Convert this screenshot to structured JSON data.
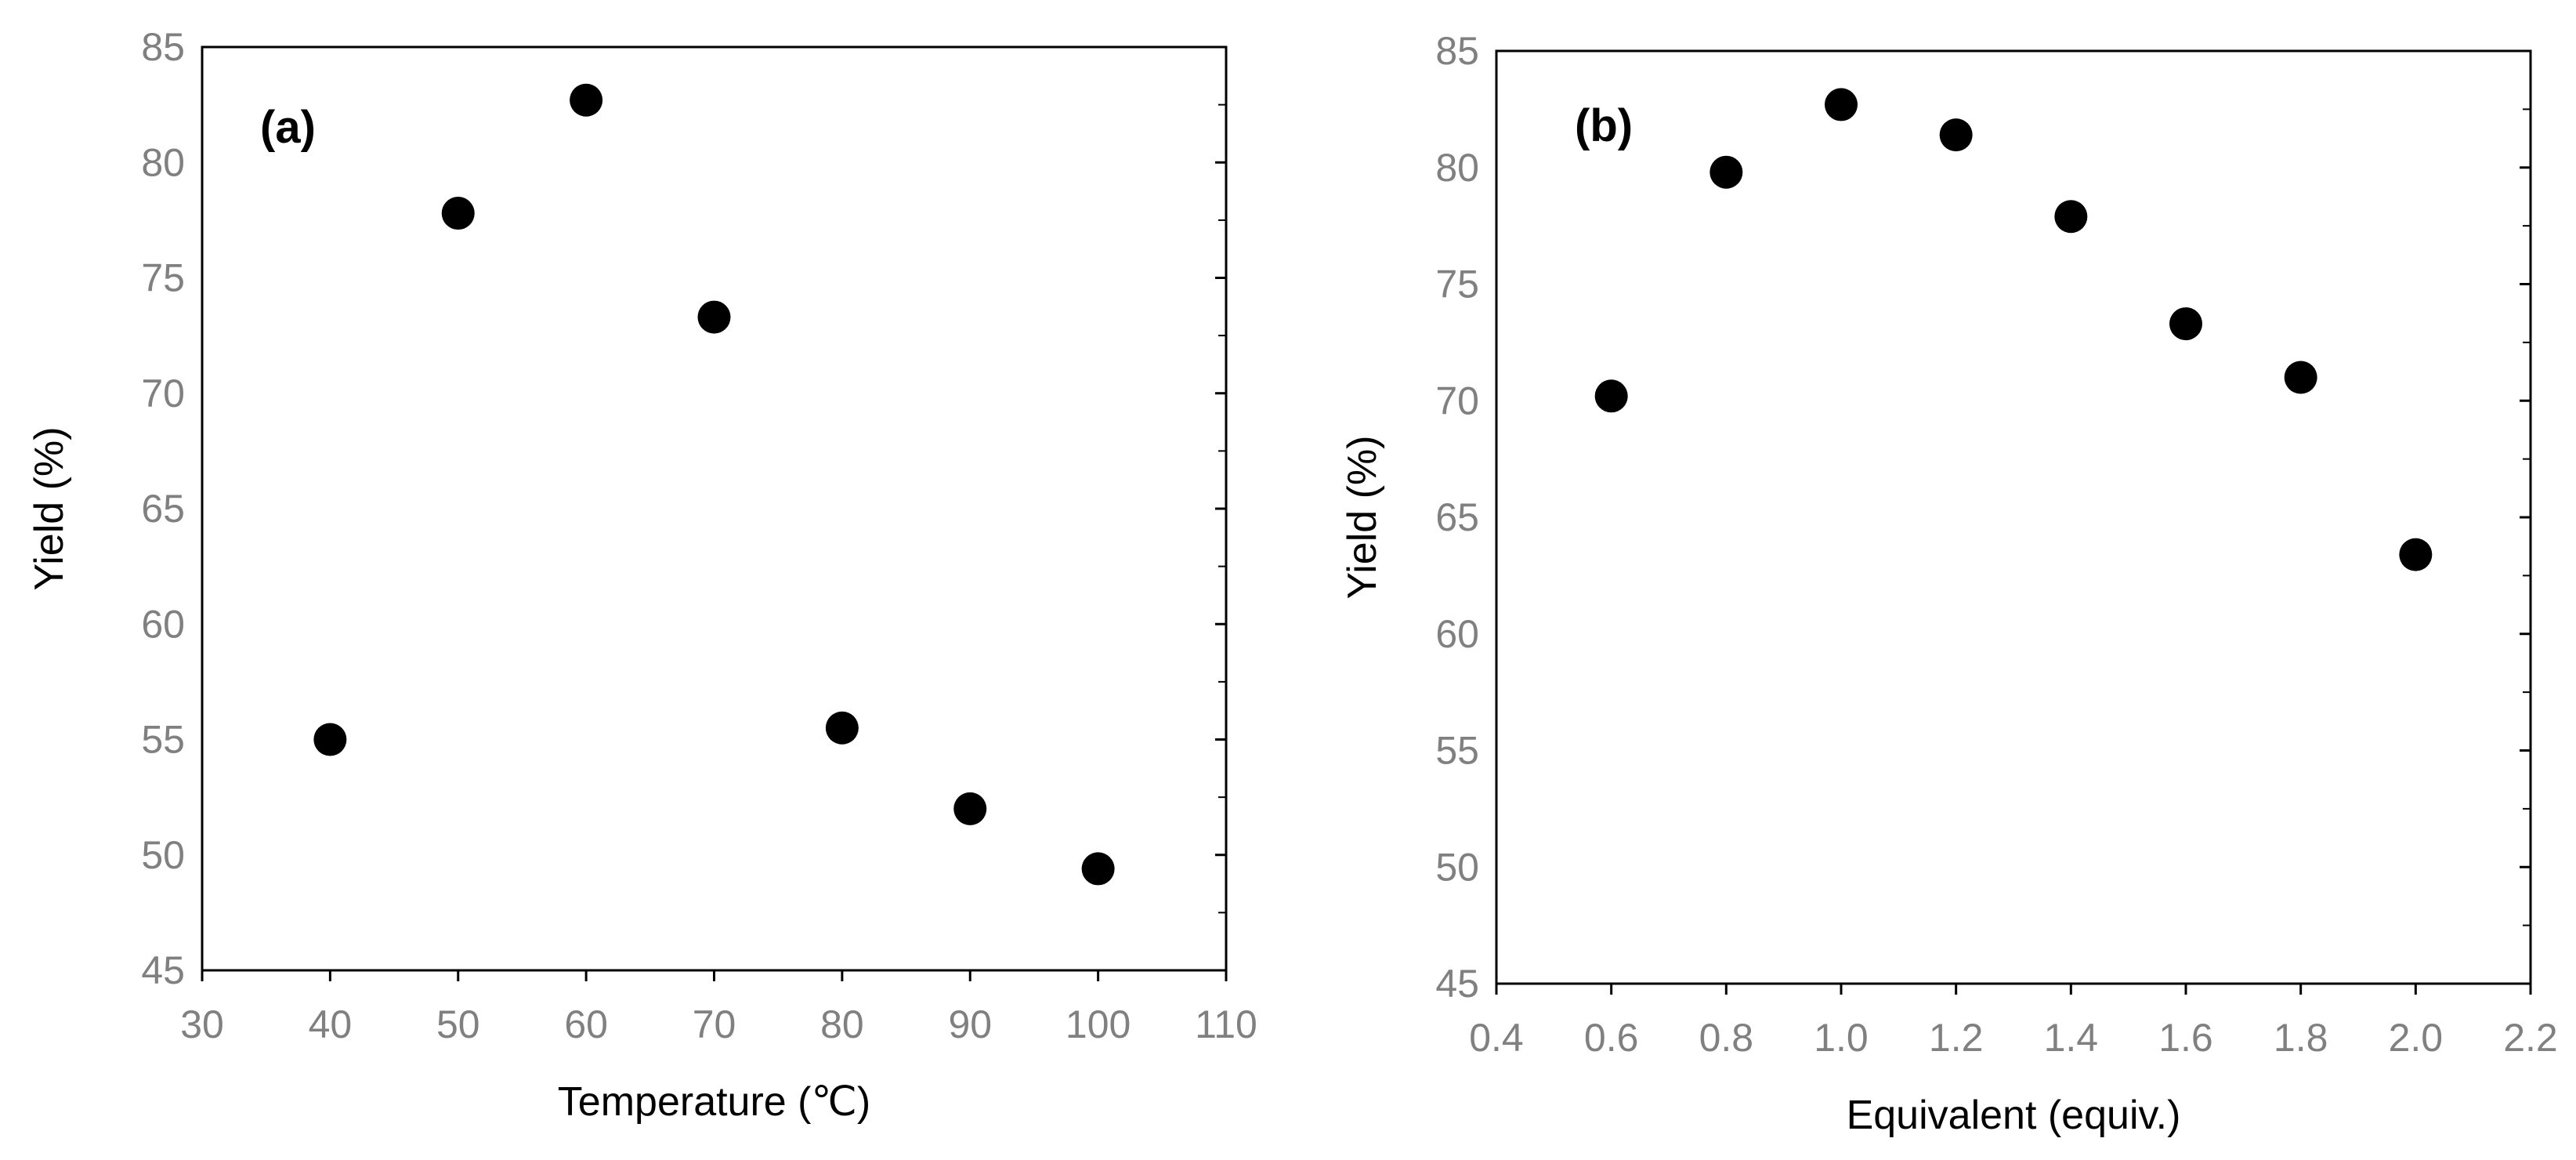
{
  "chart_data": [
    {
      "type": "scatter",
      "panel_label": "(a)",
      "xlabel": "Temperature (℃)",
      "ylabel": "Yield (%)",
      "xlim": [
        30,
        110
      ],
      "ylim": [
        45,
        85
      ],
      "xticks": [
        30,
        40,
        50,
        60,
        70,
        80,
        90,
        100,
        110
      ],
      "yticks": [
        45,
        50,
        55,
        60,
        65,
        70,
        75,
        80,
        85
      ],
      "tick_decimals": 0,
      "marker_color": "#000000",
      "grid": false,
      "points": [
        {
          "x": 40,
          "y": 55.0
        },
        {
          "x": 50,
          "y": 77.8
        },
        {
          "x": 60,
          "y": 82.7
        },
        {
          "x": 70,
          "y": 73.3
        },
        {
          "x": 80,
          "y": 55.5
        },
        {
          "x": 90,
          "y": 52.0
        },
        {
          "x": 100,
          "y": 49.4
        }
      ]
    },
    {
      "type": "scatter",
      "panel_label": "(b)",
      "xlabel": "Equivalent (equiv.)",
      "ylabel": "Yield (%)",
      "xlim": [
        0.4,
        2.2
      ],
      "ylim": [
        45,
        85
      ],
      "xticks": [
        0.4,
        0.6,
        0.8,
        1.0,
        1.2,
        1.4,
        1.6,
        1.8,
        2.0,
        2.2
      ],
      "yticks": [
        45,
        50,
        55,
        60,
        65,
        70,
        75,
        80,
        85
      ],
      "tick_decimals": 1,
      "marker_color": "#000000",
      "grid": false,
      "points": [
        {
          "x": 0.6,
          "y": 70.2
        },
        {
          "x": 0.8,
          "y": 79.8
        },
        {
          "x": 1.0,
          "y": 82.7
        },
        {
          "x": 1.2,
          "y": 81.4
        },
        {
          "x": 1.4,
          "y": 77.9
        },
        {
          "x": 1.6,
          "y": 73.3
        },
        {
          "x": 1.8,
          "y": 71.0
        },
        {
          "x": 2.0,
          "y": 63.4
        }
      ]
    }
  ]
}
